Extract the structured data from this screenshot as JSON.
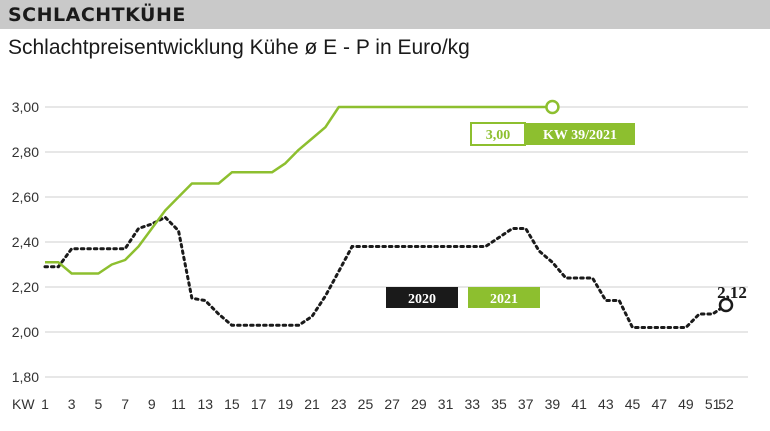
{
  "header": {
    "title": "SCHLACHTKÜHE"
  },
  "subtitle": "Schlachtpreisentwicklung Kühe ø E - P in Euro/kg",
  "chart_data": {
    "type": "line",
    "title": "SCHLACHTKÜHE",
    "subtitle": "Schlachtpreisentwicklung Kühe ø E - P in Euro/kg",
    "xlabel": "KW",
    "ylabel": "",
    "xlim": [
      1,
      52
    ],
    "ylim": [
      1.8,
      3.0
    ],
    "xticks": [
      1,
      3,
      5,
      7,
      9,
      11,
      13,
      15,
      17,
      19,
      21,
      23,
      25,
      27,
      29,
      31,
      33,
      35,
      37,
      39,
      41,
      43,
      45,
      47,
      49,
      51,
      52
    ],
    "yticks": [
      "1,80",
      "2,00",
      "2,20",
      "2,40",
      "2,60",
      "2,80",
      "3,00"
    ],
    "yticks_values": [
      1.8,
      2.0,
      2.2,
      2.4,
      2.6,
      2.8,
      3.0
    ],
    "grid": "horizontal",
    "legend": [
      "2020",
      "2021"
    ],
    "series": [
      {
        "name": "2020",
        "style": "dotted",
        "color": "#1a1a1a",
        "x": [
          1,
          2,
          3,
          4,
          5,
          6,
          7,
          8,
          9,
          10,
          11,
          12,
          13,
          14,
          15,
          16,
          17,
          18,
          19,
          20,
          21,
          22,
          23,
          24,
          25,
          26,
          27,
          28,
          29,
          30,
          31,
          32,
          33,
          34,
          35,
          36,
          37,
          38,
          39,
          40,
          41,
          42,
          43,
          44,
          45,
          46,
          47,
          48,
          49,
          50,
          51,
          52
        ],
        "values": [
          2.29,
          2.29,
          2.37,
          2.37,
          2.37,
          2.37,
          2.37,
          2.46,
          2.48,
          2.51,
          2.45,
          2.15,
          2.14,
          2.08,
          2.03,
          2.03,
          2.03,
          2.03,
          2.03,
          2.03,
          2.07,
          2.16,
          2.27,
          2.38,
          2.38,
          2.38,
          2.38,
          2.38,
          2.38,
          2.38,
          2.38,
          2.38,
          2.38,
          2.38,
          2.42,
          2.46,
          2.46,
          2.36,
          2.31,
          2.24,
          2.24,
          2.24,
          2.14,
          2.14,
          2.02,
          2.02,
          2.02,
          2.02,
          2.02,
          2.08,
          2.08,
          2.12
        ]
      },
      {
        "name": "2021",
        "style": "solid",
        "color": "#8dbf2f",
        "x": [
          1,
          2,
          3,
          4,
          5,
          6,
          7,
          8,
          9,
          10,
          11,
          12,
          13,
          14,
          15,
          16,
          17,
          18,
          19,
          20,
          21,
          22,
          23,
          24,
          25,
          26,
          27,
          28,
          29,
          30,
          31,
          32,
          33,
          34,
          35,
          36,
          37,
          38,
          39
        ],
        "values": [
          2.31,
          2.31,
          2.26,
          2.26,
          2.26,
          2.3,
          2.32,
          2.38,
          2.46,
          2.54,
          2.6,
          2.66,
          2.66,
          2.66,
          2.71,
          2.71,
          2.71,
          2.71,
          2.75,
          2.81,
          2.86,
          2.91,
          3.0,
          3.0,
          3.0,
          3.0,
          3.0,
          3.0,
          3.0,
          3.0,
          3.0,
          3.0,
          3.0,
          3.0,
          3.0,
          3.0,
          3.0,
          3.0,
          3.0
        ]
      }
    ],
    "annotations": [
      {
        "text": "3,00",
        "label": "KW 39/2021"
      },
      {
        "text": "2,12"
      }
    ],
    "colors": {
      "green": "#8dbf2f",
      "black": "#1a1a1a",
      "header_bg": "#c9c9c9"
    }
  }
}
